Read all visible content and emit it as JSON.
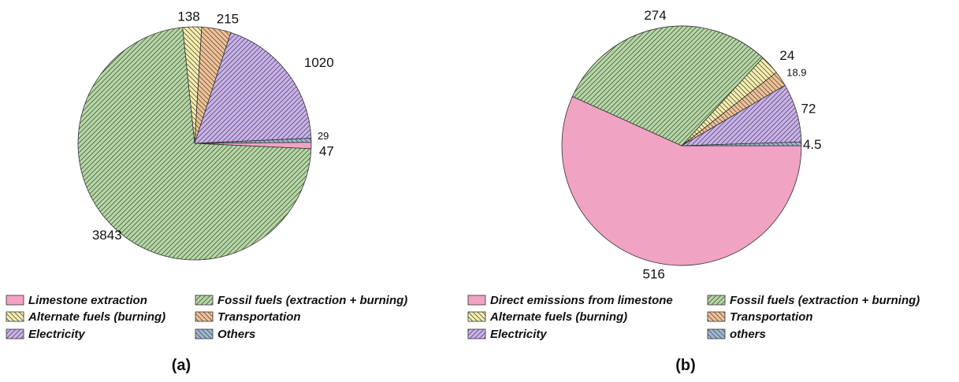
{
  "chart_data": [
    {
      "type": "pie",
      "panel_label": "(a)",
      "categories": [
        "Limestone extraction",
        "Fossil fuels (extraction + burning)",
        "Alternate fuels (burning)",
        "Transportation",
        "Electricity",
        "Others"
      ],
      "values": [
        47,
        3843,
        138,
        215,
        1020,
        29
      ],
      "data_labels": [
        "47",
        "3843",
        "138",
        "215",
        "1020",
        "29"
      ],
      "legend_order": [
        "Limestone extraction",
        "Fossil fuels (extraction + burning)",
        "Alternate fuels (burning)",
        "Transportation",
        "Electricity",
        "Others"
      ]
    },
    {
      "type": "pie",
      "panel_label": "(b)",
      "categories": [
        "Direct emissions from limestone",
        "Fossil fuels (extraction + burning)",
        "Alternate fuels (burning)",
        "Transportation",
        "Electricity",
        "others"
      ],
      "values": [
        516,
        274,
        24,
        18.9,
        72,
        4.5
      ],
      "data_labels": [
        "516",
        "274",
        "24",
        "18.9",
        "72",
        "4.5"
      ],
      "legend_order": [
        "Direct emissions from limestone",
        "Fossil fuels (extraction + burning)",
        "Alternate fuels (burning)",
        "Transportation",
        "Electricity",
        "others"
      ]
    }
  ],
  "colors": {
    "limestone": "#f0a3c3",
    "fossil": "#b4d9a1",
    "alternate": "#f6efaa",
    "transport": "#f3c193",
    "electricity": "#cbb1f0",
    "others": "#9db8d6",
    "hatch": "#555555"
  }
}
